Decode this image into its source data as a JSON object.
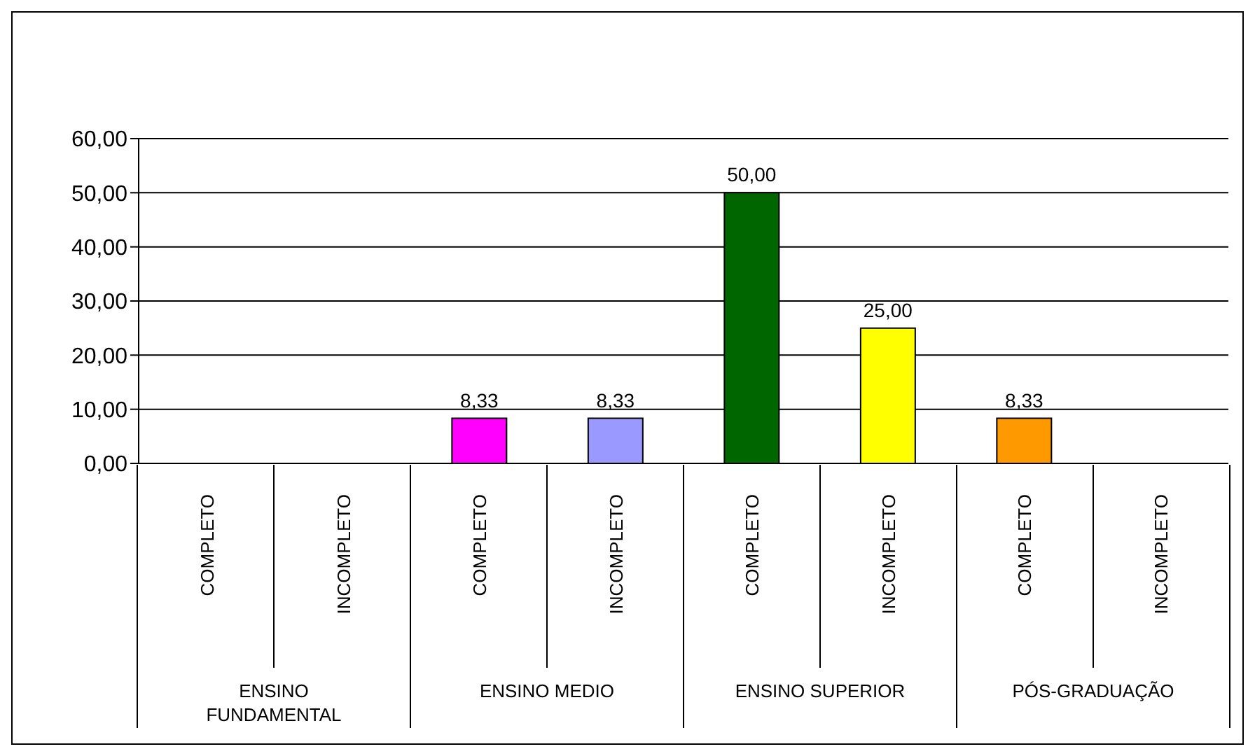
{
  "chart_data": {
    "type": "bar",
    "categories": [
      "COMPLETO",
      "INCOMPLETO",
      "COMPLETO",
      "INCOMPLETO",
      "COMPLETO",
      "INCOMPLETO",
      "COMPLETO",
      "INCOMPLETO"
    ],
    "values": [
      0,
      0,
      8.33,
      8.33,
      50,
      25,
      8.33,
      0
    ],
    "colors": [
      "#ff00ff",
      "#9999ff",
      "#ff00ff",
      "#9999ff",
      "#006600",
      "#ffff00",
      "#ff9900",
      "#9999ff"
    ],
    "value_labels": [
      null,
      null,
      "8,33",
      "8,33",
      "50,00",
      "25,00",
      "8,33",
      null
    ],
    "annotations": [
      "ENSINO FUNDAMENTAL",
      "ENSINO MEDIO",
      "ENSINO SUPERIOR",
      "PÓS-GRADUAÇÃO"
    ],
    "ylim": [
      0,
      60
    ],
    "yticks": [
      {
        "value": 0,
        "label": "0,00"
      },
      {
        "value": 10,
        "label": "10,00"
      },
      {
        "value": 20,
        "label": "20,00"
      },
      {
        "value": 30,
        "label": "30,00"
      },
      {
        "value": 40,
        "label": "40,00"
      },
      {
        "value": 50,
        "label": "50,00"
      },
      {
        "value": 60,
        "label": "60,00"
      }
    ],
    "grid": "y",
    "legend": false
  }
}
